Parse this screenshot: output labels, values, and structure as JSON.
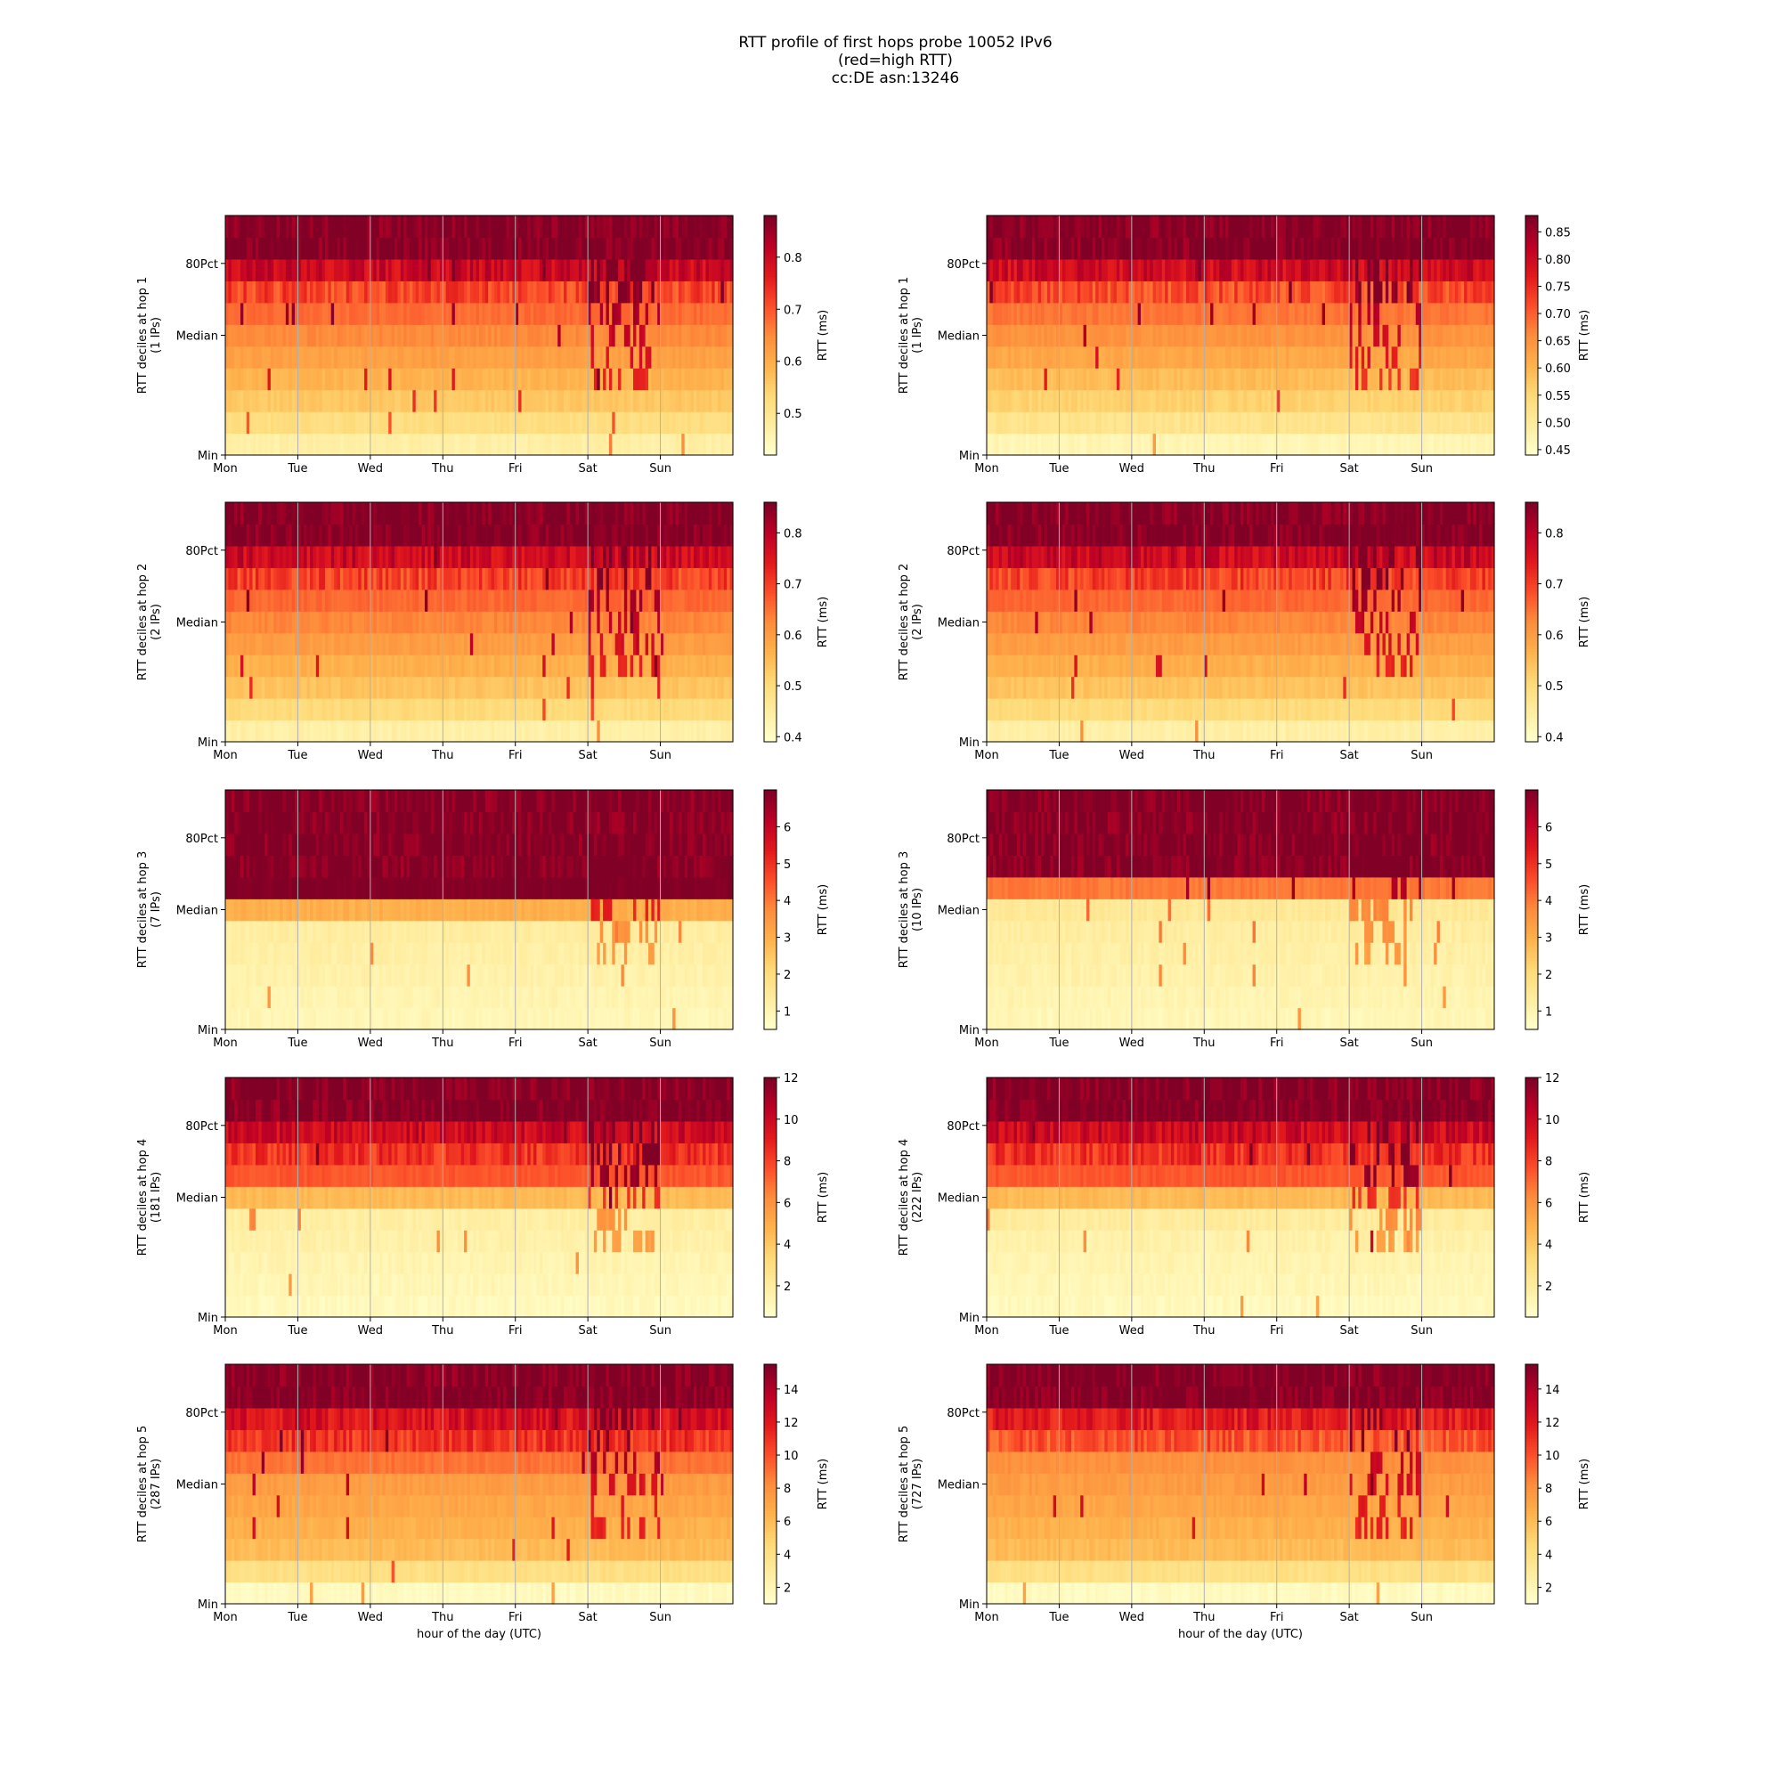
{
  "figure": {
    "title_lines": [
      "RTT profile of first hops probe 10052 IPv6",
      "(red=high RTT)",
      "cc:DE asn:13246"
    ],
    "xlabel": "hour of the day (UTC)",
    "colorbar_label": "RTT (ms)",
    "colormap": "YlOrRd",
    "colormap_stops": [
      "#ffffcc",
      "#ffeda0",
      "#fed976",
      "#feb24c",
      "#fd8d3c",
      "#fc4e2a",
      "#e31a1c",
      "#bd0026",
      "#800026"
    ]
  },
  "chart_data": [
    {
      "type": "heatmap",
      "ylabel": "RTT deciles at hop 1",
      "ylabel2": "(1 IPs)",
      "x_ticks": [
        "Mon",
        "Tue",
        "Wed",
        "Thu",
        "Fri",
        "Sat",
        "Sun"
      ],
      "y_ticks": [
        "Min",
        "Median",
        "80Pct"
      ],
      "colorbar_ticks": [
        "0.5",
        "0.6",
        "0.7",
        "0.8"
      ],
      "vmin": 0.42,
      "vmax": 0.88,
      "decile_levels": [
        0.47,
        0.52,
        0.56,
        0.59,
        0.62,
        0.65,
        0.68,
        0.72,
        0.8,
        0.88
      ],
      "grid": true
    },
    {
      "type": "heatmap",
      "ylabel": "RTT deciles at hop 1",
      "ylabel2": "(1 IPs)",
      "x_ticks": [
        "Mon",
        "Tue",
        "Wed",
        "Thu",
        "Fri",
        "Sat",
        "Sun"
      ],
      "y_ticks": [
        "Min",
        "Median",
        "80Pct"
      ],
      "colorbar_ticks": [
        "0.45",
        "0.50",
        "0.55",
        "0.60",
        "0.65",
        "0.70",
        "0.75",
        "0.80",
        "0.85"
      ],
      "vmin": 0.44,
      "vmax": 0.88,
      "decile_levels": [
        0.47,
        0.52,
        0.56,
        0.59,
        0.62,
        0.65,
        0.68,
        0.72,
        0.8,
        0.88
      ],
      "grid": true
    },
    {
      "type": "heatmap",
      "ylabel": "RTT deciles at hop 2",
      "ylabel2": "(2 IPs)",
      "x_ticks": [
        "Mon",
        "Tue",
        "Wed",
        "Thu",
        "Fri",
        "Sat",
        "Sun"
      ],
      "y_ticks": [
        "Min",
        "Median",
        "80Pct"
      ],
      "colorbar_ticks": [
        "0.4",
        "0.5",
        "0.6",
        "0.7",
        "0.8"
      ],
      "vmin": 0.39,
      "vmax": 0.86,
      "decile_levels": [
        0.44,
        0.5,
        0.54,
        0.57,
        0.6,
        0.63,
        0.66,
        0.7,
        0.78,
        0.86
      ],
      "grid": true
    },
    {
      "type": "heatmap",
      "ylabel": "RTT deciles at hop 2",
      "ylabel2": "(2 IPs)",
      "x_ticks": [
        "Mon",
        "Tue",
        "Wed",
        "Thu",
        "Fri",
        "Sat",
        "Sun"
      ],
      "y_ticks": [
        "Min",
        "Median",
        "80Pct"
      ],
      "colorbar_ticks": [
        "0.4",
        "0.5",
        "0.6",
        "0.7",
        "0.8"
      ],
      "vmin": 0.39,
      "vmax": 0.86,
      "decile_levels": [
        0.44,
        0.5,
        0.54,
        0.57,
        0.6,
        0.63,
        0.66,
        0.7,
        0.78,
        0.86
      ],
      "grid": true
    },
    {
      "type": "heatmap",
      "ylabel": "RTT deciles at hop 3",
      "ylabel2": "(7 IPs)",
      "x_ticks": [
        "Mon",
        "Tue",
        "Wed",
        "Thu",
        "Fri",
        "Sat",
        "Sun"
      ],
      "y_ticks": [
        "Min",
        "Median",
        "80Pct"
      ],
      "colorbar_ticks": [
        "1",
        "2",
        "3",
        "4",
        "5",
        "6"
      ],
      "vmin": 0.5,
      "vmax": 7.0,
      "decile_levels": [
        0.9,
        1.0,
        1.1,
        1.2,
        1.3,
        3.0,
        7.0,
        7.0,
        7.0,
        7.0
      ],
      "grid": true
    },
    {
      "type": "heatmap",
      "ylabel": "RTT deciles at hop 3",
      "ylabel2": "(10 IPs)",
      "x_ticks": [
        "Mon",
        "Tue",
        "Wed",
        "Thu",
        "Fri",
        "Sat",
        "Sun"
      ],
      "y_ticks": [
        "Min",
        "Median",
        "80Pct"
      ],
      "colorbar_ticks": [
        "1",
        "2",
        "3",
        "4",
        "5",
        "6"
      ],
      "vmin": 0.5,
      "vmax": 7.0,
      "decile_levels": [
        0.9,
        1.0,
        1.1,
        1.2,
        1.3,
        1.5,
        4.0,
        7.0,
        7.0,
        7.0
      ],
      "grid": true
    },
    {
      "type": "heatmap",
      "ylabel": "RTT deciles at hop 4",
      "ylabel2": "(181 IPs)",
      "x_ticks": [
        "Mon",
        "Tue",
        "Wed",
        "Thu",
        "Fri",
        "Sat",
        "Sun"
      ],
      "y_ticks": [
        "Min",
        "Median",
        "80Pct"
      ],
      "colorbar_ticks": [
        "2",
        "4",
        "6",
        "8",
        "10",
        "12"
      ],
      "vmin": 0.5,
      "vmax": 12.0,
      "decile_levels": [
        1.0,
        1.2,
        1.4,
        1.6,
        1.8,
        4.5,
        7.5,
        8.5,
        10.0,
        12.0
      ],
      "grid": true
    },
    {
      "type": "heatmap",
      "ylabel": "RTT deciles at hop 4",
      "ylabel2": "(222 IPs)",
      "x_ticks": [
        "Mon",
        "Tue",
        "Wed",
        "Thu",
        "Fri",
        "Sat",
        "Sun"
      ],
      "y_ticks": [
        "Min",
        "Median",
        "80Pct"
      ],
      "colorbar_ticks": [
        "2",
        "4",
        "6",
        "8",
        "10",
        "12"
      ],
      "vmin": 0.5,
      "vmax": 12.0,
      "decile_levels": [
        1.0,
        1.2,
        1.4,
        1.6,
        2.0,
        4.5,
        7.5,
        8.5,
        10.0,
        12.0
      ],
      "grid": true
    },
    {
      "type": "heatmap",
      "ylabel": "RTT deciles at hop 5",
      "ylabel2": "(287 IPs)",
      "x_ticks": [
        "Mon",
        "Tue",
        "Wed",
        "Thu",
        "Fri",
        "Sat",
        "Sun"
      ],
      "y_ticks": [
        "Min",
        "Median",
        "80Pct"
      ],
      "colorbar_ticks": [
        "2",
        "4",
        "6",
        "8",
        "10",
        "12",
        "14"
      ],
      "vmin": 1.0,
      "vmax": 15.5,
      "decile_levels": [
        1.5,
        4.0,
        6.0,
        6.5,
        7.0,
        7.5,
        9.0,
        11.0,
        12.5,
        15.5
      ],
      "grid": true
    },
    {
      "type": "heatmap",
      "ylabel": "RTT deciles at hop 5",
      "ylabel2": "(727 IPs)",
      "x_ticks": [
        "Mon",
        "Tue",
        "Wed",
        "Thu",
        "Fri",
        "Sat",
        "Sun"
      ],
      "y_ticks": [
        "Min",
        "Median",
        "80Pct"
      ],
      "colorbar_ticks": [
        "2",
        "4",
        "6",
        "8",
        "10",
        "12",
        "14"
      ],
      "vmin": 1.0,
      "vmax": 15.5,
      "decile_levels": [
        1.5,
        4.0,
        6.0,
        6.5,
        7.0,
        7.5,
        8.0,
        10.0,
        12.0,
        15.5
      ],
      "grid": true
    }
  ]
}
